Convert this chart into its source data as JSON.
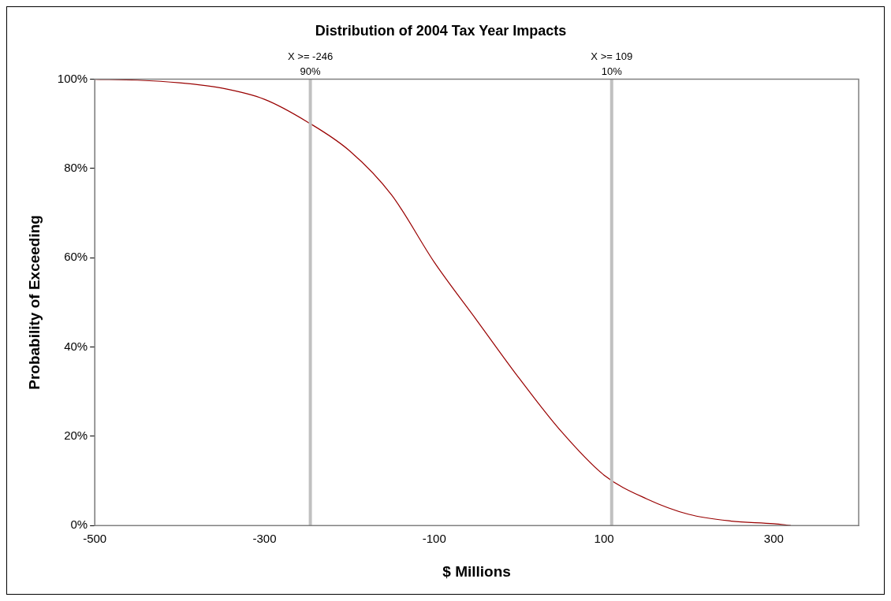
{
  "chart_data": {
    "type": "line",
    "title": "Distribution of 2004 Tax Year Impacts",
    "xlabel": "$ Millions",
    "ylabel": "Probability of Exceeding",
    "x": [
      -500,
      -450,
      -400,
      -350,
      -300,
      -250,
      -200,
      -150,
      -100,
      -50,
      0,
      50,
      100,
      150,
      200,
      250,
      300,
      320
    ],
    "series": [
      {
        "color": "#990000",
        "values": [
          100,
          99.8,
          99.2,
          98,
          95.5,
          90.5,
          84,
          74,
          59,
          46,
          33,
          21,
          11.3,
          6,
          2.5,
          1,
          0.4,
          0
        ]
      }
    ],
    "xlim": [
      -500,
      400
    ],
    "xticks": [
      -500,
      -300,
      -100,
      100,
      300
    ],
    "ylim": [
      0,
      100
    ],
    "yticks": [
      {
        "value": 0,
        "label": "0%"
      },
      {
        "value": 20,
        "label": "20%"
      },
      {
        "value": 40,
        "label": "40%"
      },
      {
        "value": 60,
        "label": "60%"
      },
      {
        "value": 80,
        "label": "80%"
      },
      {
        "value": 100,
        "label": "100%"
      }
    ],
    "ref_lines": [
      {
        "axis": "x",
        "value": -246,
        "label": "X >= -246\n90%",
        "color": "#c0c0c0"
      },
      {
        "axis": "x",
        "value": 109,
        "label": "X >= 109\n10%",
        "color": "#c0c0c0"
      }
    ],
    "grid": false,
    "legend": false,
    "marker": "none",
    "line_style": "solid"
  }
}
